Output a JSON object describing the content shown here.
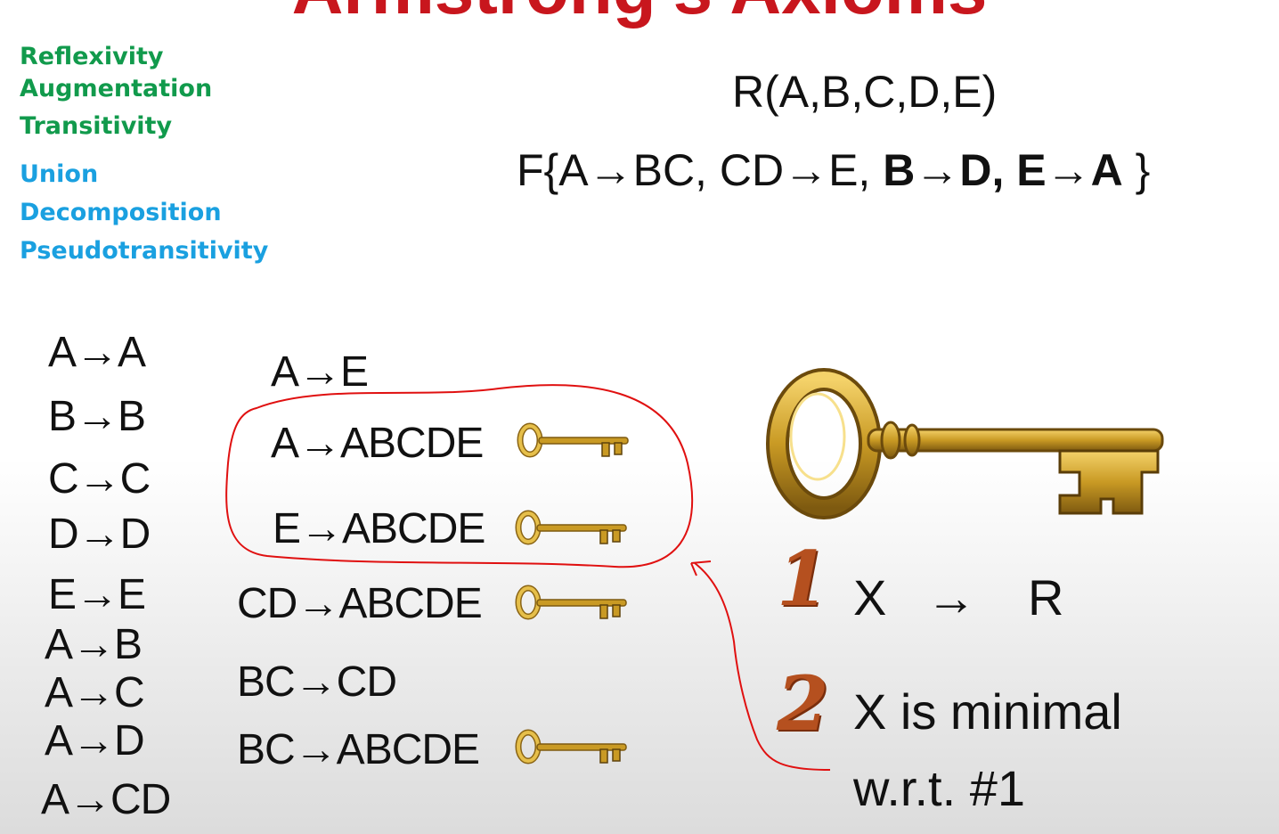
{
  "title": "Armstrong's Axioms",
  "axioms": {
    "basic": [
      "Reflexivity",
      "Augmentation",
      "Transitivity"
    ],
    "derived": [
      "Union",
      "Decomposition",
      "Pseudotransitivity"
    ],
    "basic_color": "#119a4c",
    "derived_color": "#1aa0e0"
  },
  "relation": "R(A,B,C,D,E)",
  "fds": {
    "open": "F{",
    "items": [
      "A→BC,",
      "CD→E,",
      "B→D,",
      "E→A"
    ],
    "close": "}"
  },
  "col1": [
    "A→A",
    "B→B",
    "C→C",
    "D→D",
    "E→E",
    "A→B",
    "A→C",
    "A→D",
    "A→CD"
  ],
  "col2": [
    "A→E",
    "A→ABCDE",
    "E→ABCDE",
    "CD→ABCDE",
    "BC→CD",
    "BC→ABCDE"
  ],
  "criteria": {
    "one_num": "1",
    "one_x": "X",
    "one_arrow": "→",
    "one_r": "R",
    "two_num": "2",
    "two_line1": "X is minimal",
    "two_line2": "w.r.t.  #1"
  },
  "annotation_color": "#e01010",
  "key_color": "#c9a227"
}
